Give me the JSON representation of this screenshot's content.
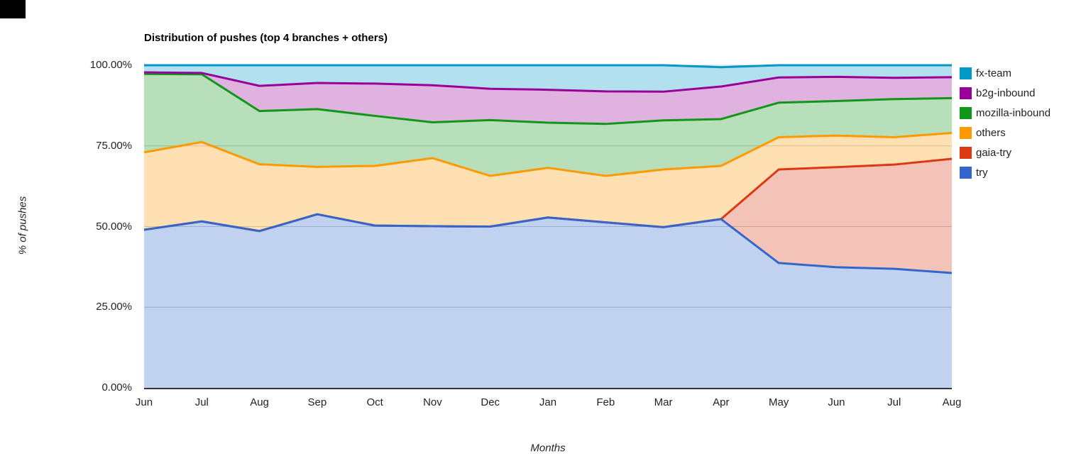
{
  "artifact": {
    "color": "#000000"
  },
  "colors": {
    "grid": "#cccccc",
    "axis_line": "#333333",
    "tick_text": "#222222",
    "title_text": "#000000"
  },
  "chart_data": {
    "type": "area",
    "stacked": true,
    "percent_mode": true,
    "title": "Distribution of pushes (top 4 branches + others)",
    "xlabel": "Months",
    "ylabel": "% of pushes",
    "ylim": [
      0,
      100
    ],
    "grid": true,
    "legend_position": "right",
    "fill_opacity": 0.3,
    "x_labels": [
      "Jun",
      "Jul",
      "Aug",
      "Sep",
      "Oct",
      "Nov",
      "Dec",
      "Jan",
      "Feb",
      "Mar",
      "Apr",
      "May",
      "Jun",
      "Jul",
      "Aug"
    ],
    "y_ticks": [
      "0.00%",
      "25.00%",
      "50.00%",
      "75.00%",
      "100.00%"
    ],
    "stack_order_bottom_to_top": [
      "try",
      "gaia-try",
      "others",
      "mozilla-inbound",
      "b2g-inbound",
      "fx-team"
    ],
    "series": [
      {
        "name": "fx-team",
        "color": "#0099C6",
        "values": [
          2.2,
          2.4,
          6.4,
          5.5,
          5.7,
          6.2,
          7.3,
          7.6,
          8.1,
          8.2,
          6.0,
          3.8,
          3.6,
          3.9,
          3.7
        ]
      },
      {
        "name": "b2g-inbound",
        "color": "#990099",
        "values": [
          0.5,
          0.4,
          7.8,
          8.1,
          10.0,
          11.5,
          9.7,
          10.2,
          10.1,
          8.9,
          10.1,
          7.8,
          7.5,
          6.6,
          6.5
        ]
      },
      {
        "name": "mozilla-inbound",
        "color": "#109618",
        "values": [
          24.3,
          21.0,
          16.5,
          17.9,
          15.5,
          11.1,
          17.3,
          14.0,
          16.1,
          15.2,
          14.5,
          10.7,
          10.7,
          11.8,
          10.8
        ]
      },
      {
        "name": "others",
        "color": "#FF9900",
        "values": [
          24.0,
          24.6,
          20.7,
          14.7,
          18.5,
          21.1,
          15.7,
          15.4,
          14.4,
          17.9,
          16.5,
          10.0,
          9.8,
          8.5,
          8.0
        ]
      },
      {
        "name": "gaia-try",
        "color": "#DC3912",
        "values": [
          0,
          0,
          0,
          0,
          0,
          0,
          0,
          0,
          0,
          0,
          0,
          29.0,
          31.0,
          32.3,
          35.4
        ]
      },
      {
        "name": "try",
        "color": "#3366CC",
        "values": [
          49.0,
          51.6,
          48.6,
          53.8,
          50.3,
          50.1,
          50.0,
          52.8,
          51.3,
          49.8,
          52.3,
          38.7,
          37.4,
          36.9,
          35.6
        ]
      }
    ]
  }
}
